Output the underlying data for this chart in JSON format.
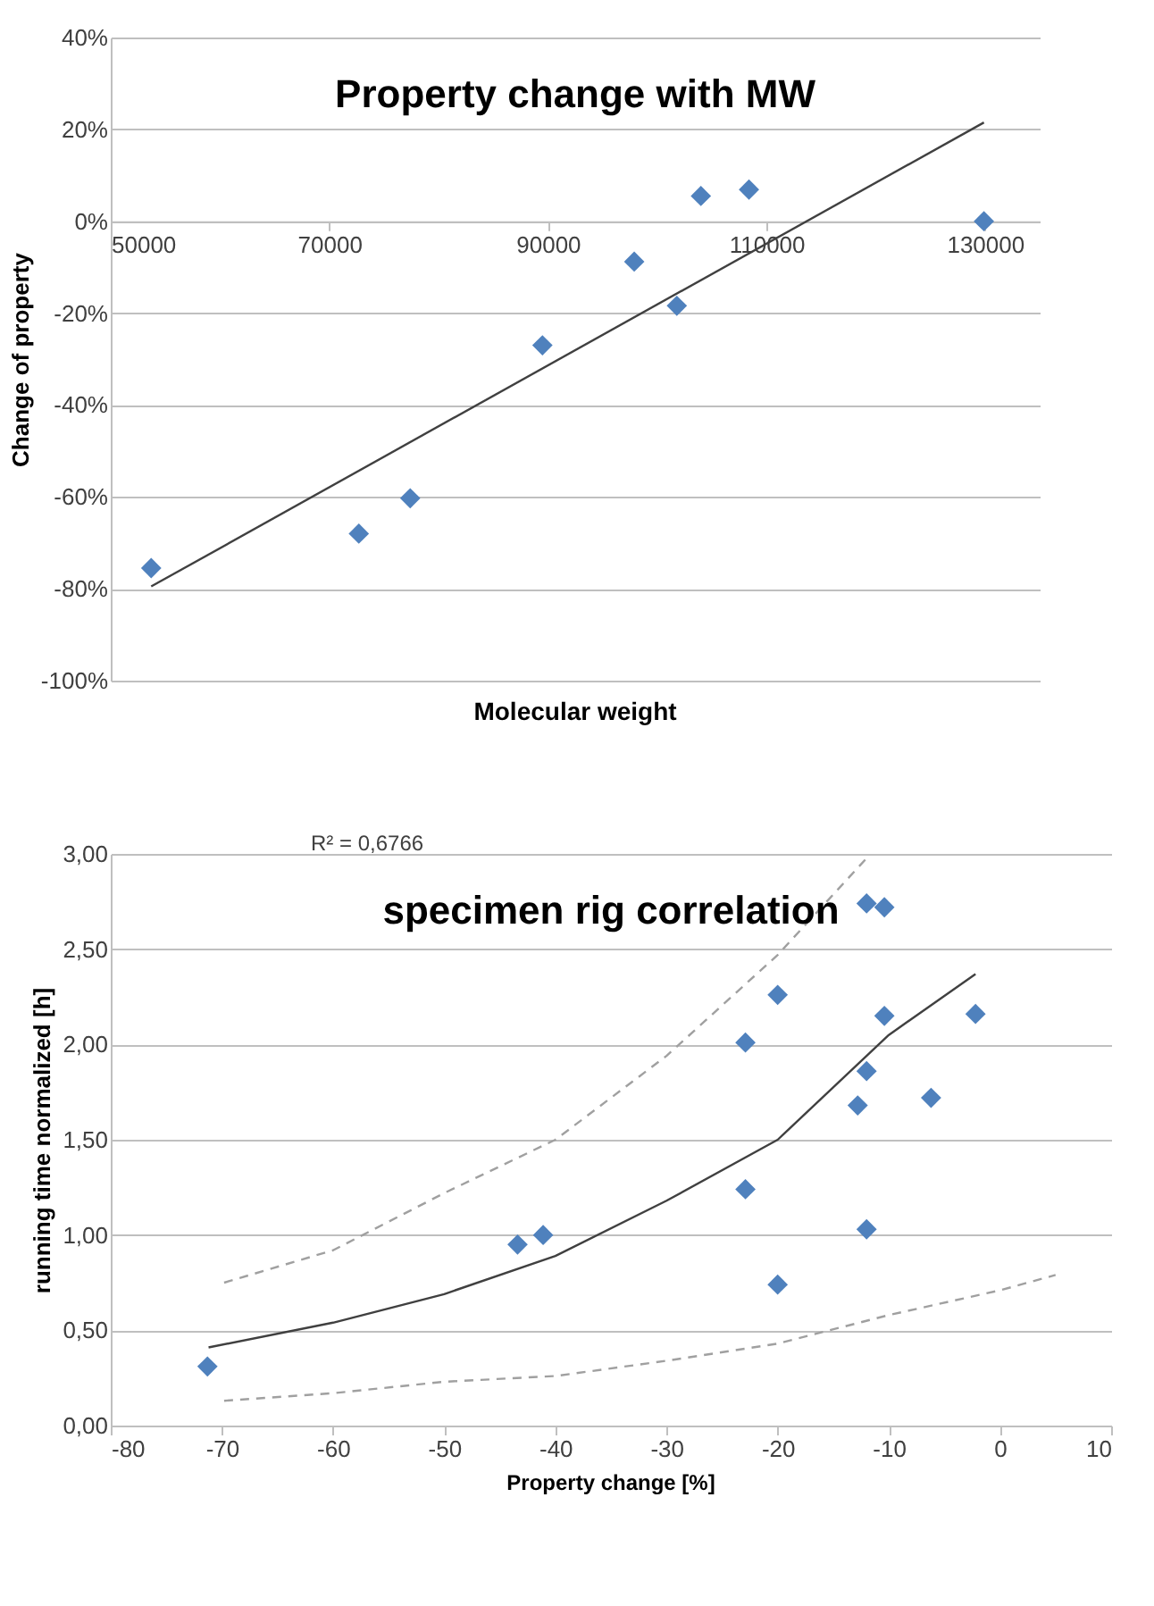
{
  "chart_data": [
    {
      "type": "scatter",
      "title": "Property change with MW",
      "xlabel": "Molecular weight",
      "ylabel": "Change of property",
      "xlim": [
        50000,
        135000
      ],
      "xticks": [
        50000,
        70000,
        90000,
        110000,
        130000
      ],
      "ylim": [
        -100,
        40
      ],
      "yticks": [
        {
          "value": -100,
          "label": "-100%"
        },
        {
          "value": -80,
          "label": "-80%"
        },
        {
          "value": -60,
          "label": "-60%"
        },
        {
          "value": -40,
          "label": "-40%"
        },
        {
          "value": -20,
          "label": "-20%"
        },
        {
          "value": 0,
          "label": "0%"
        },
        {
          "value": 20,
          "label": "20%"
        },
        {
          "value": 40,
          "label": "40%"
        }
      ],
      "grid": "y",
      "marker": "diamond",
      "series": [
        {
          "color": "#4f81bd",
          "x": [
            53700,
            72700,
            77400,
            89500,
            97900,
            101800,
            104000,
            108400,
            129900
          ],
          "values": [
            -75.5,
            -68,
            -60.3,
            -27,
            -8.8,
            -18.4,
            5.5,
            6.9,
            0
          ]
        },
        {
          "type": "line",
          "color": "#404040",
          "marker": "none",
          "line_style": "solid",
          "x": [
            53700,
            129900
          ],
          "values": [
            -79.5,
            21.5
          ]
        }
      ]
    },
    {
      "type": "scatter",
      "title": "specimen rig correlation",
      "xlabel": "Property change [%]",
      "ylabel": "running time normalized [h]",
      "annotations": [
        "R² = 0,6766"
      ],
      "xlim": [
        -80,
        10
      ],
      "xticks": [
        -80,
        -70,
        -60,
        -50,
        -40,
        -30,
        -20,
        -10,
        0,
        10
      ],
      "ylim": [
        0,
        3
      ],
      "yticks": [
        {
          "value": 0,
          "label": "0,00"
        },
        {
          "value": 0.5,
          "label": "0,50"
        },
        {
          "value": 1,
          "label": "1,00"
        },
        {
          "value": 1.5,
          "label": "1,50"
        },
        {
          "value": 2,
          "label": "2,00"
        },
        {
          "value": 2.5,
          "label": "2,50"
        },
        {
          "value": 3,
          "label": "3,00"
        }
      ],
      "grid": "y",
      "marker": "diamond",
      "series": [
        {
          "color": "#4f81bd",
          "x": [
            -71.3,
            -43.4,
            -41.1,
            -22.9,
            -22.9,
            -20.0,
            -20.0,
            -12.8,
            -12.0,
            -12.0,
            -12.0,
            -10.4,
            -10.4,
            -6.2,
            -2.2
          ],
          "values": [
            0.31,
            0.95,
            1.0,
            2.01,
            1.24,
            2.26,
            0.74,
            1.68,
            2.74,
            1.86,
            1.03,
            2.72,
            2.15,
            1.72,
            2.16
          ]
        },
        {
          "type": "line",
          "color": "#404040",
          "marker": "none",
          "line_style": "solid",
          "x": [
            -71.2,
            -60,
            -50,
            -40,
            -30,
            -20,
            -10,
            -2.2
          ],
          "values": [
            0.41,
            0.54,
            0.69,
            0.89,
            1.18,
            1.5,
            2.05,
            2.37
          ]
        },
        {
          "type": "line",
          "color": "#a0a0a0",
          "marker": "none",
          "line_style": "dashed",
          "x": [
            -69.8,
            -60,
            -50,
            -40,
            -30,
            -20,
            -11.8
          ],
          "values": [
            0.75,
            0.92,
            1.22,
            1.5,
            1.94,
            2.47,
            2.99
          ]
        },
        {
          "type": "line",
          "color": "#a0a0a0",
          "marker": "none",
          "line_style": "dashed",
          "x": [
            -69.8,
            -60,
            -50,
            -40,
            -30,
            -20,
            -10,
            0,
            5
          ],
          "values": [
            0.13,
            0.17,
            0.23,
            0.26,
            0.34,
            0.43,
            0.58,
            0.71,
            0.79
          ]
        }
      ]
    }
  ]
}
